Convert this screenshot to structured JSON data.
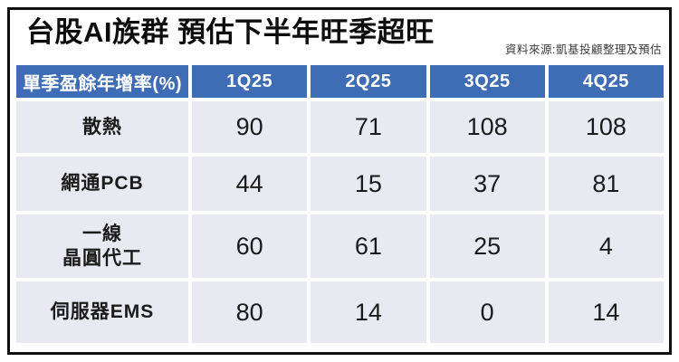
{
  "header": {
    "title": "台股AI族群 預估下半年旺季超旺",
    "source": "資料來源:凱基投顧整理及預估"
  },
  "colors": {
    "header_bg": "#3E6CB5",
    "body_bg": "#E9EAF1",
    "frame_border": "#101010",
    "header_text": "#FFFFFF",
    "body_text": "#1B1B1B"
  },
  "chart_data": {
    "type": "table",
    "title": "台股AI族群 預估下半年旺季超旺",
    "source_note": "資料來源:凱基投顧整理及預估",
    "columns": [
      "單季盈餘年增率(%)",
      "1Q25",
      "2Q25",
      "3Q25",
      "4Q25"
    ],
    "rows": [
      {
        "label": "散熱",
        "values": [
          90,
          71,
          108,
          108
        ]
      },
      {
        "label": "網通PCB",
        "values": [
          44,
          15,
          37,
          81
        ]
      },
      {
        "label": "一線\n晶圓代工",
        "values": [
          60,
          61,
          25,
          4
        ]
      },
      {
        "label": "伺服器EMS",
        "values": [
          80,
          14,
          0,
          14
        ]
      }
    ]
  }
}
